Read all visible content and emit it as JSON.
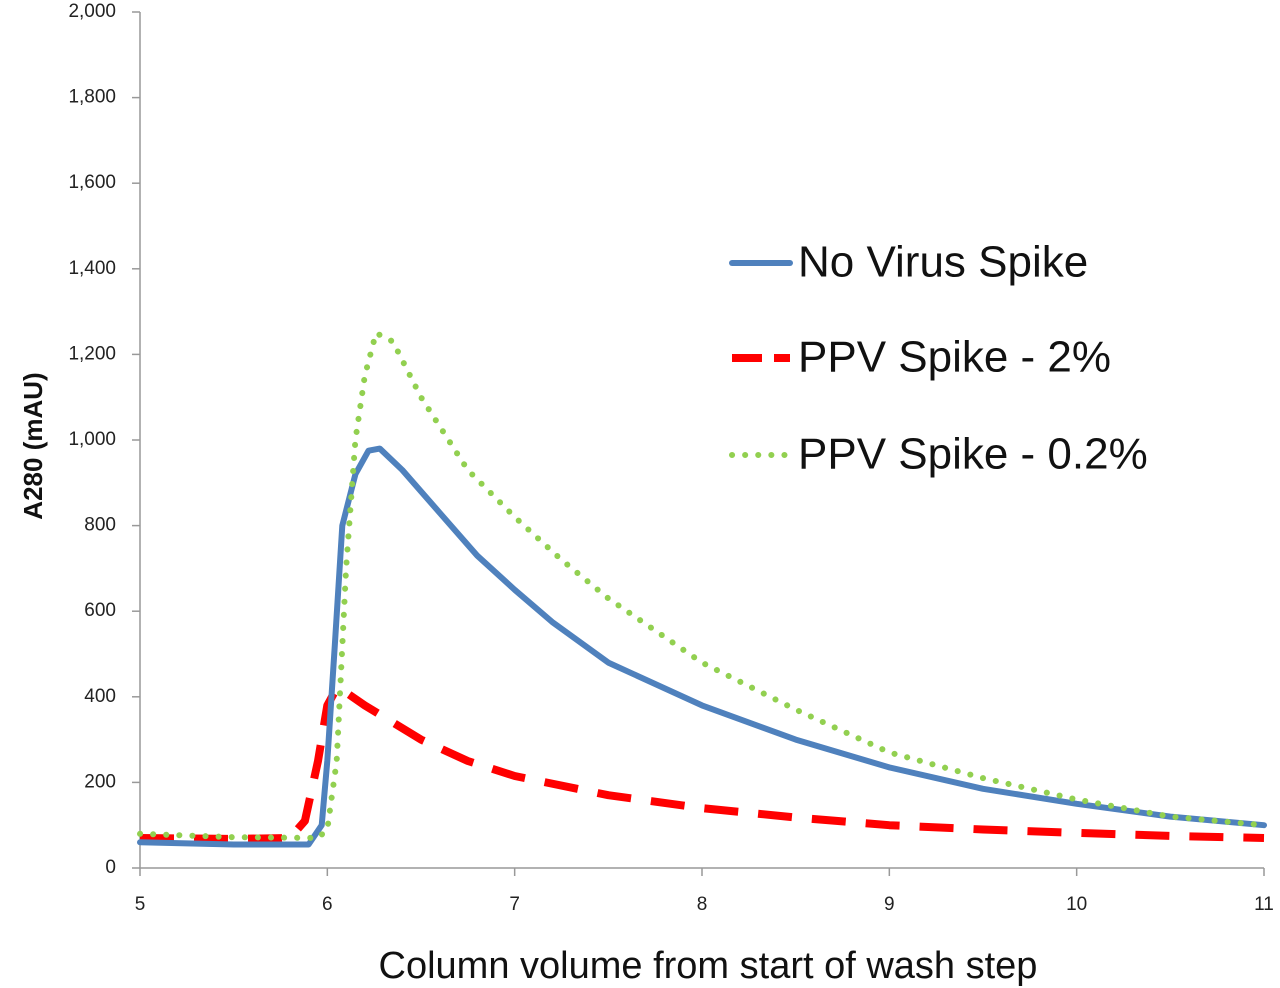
{
  "chart_data": {
    "type": "line",
    "title": "",
    "xlabel": "Column volume from start of wash step",
    "ylabel": "A280 (mAU)",
    "xlim": [
      5,
      11
    ],
    "ylim": [
      0,
      2000
    ],
    "x_ticks": [
      5,
      6,
      7,
      8,
      9,
      10,
      11
    ],
    "x_tick_labels": [
      "5",
      "6",
      "7",
      "8",
      "9",
      "10",
      "11"
    ],
    "y_ticks": [
      0,
      200,
      400,
      600,
      800,
      1000,
      1200,
      1400,
      1600,
      1800,
      2000
    ],
    "y_tick_labels": [
      "0",
      "200",
      "400",
      "600",
      "800",
      "1,000",
      "1,200",
      "1,400",
      "1,600",
      "1,800",
      "2,000"
    ],
    "grid": false,
    "legend_position": "right",
    "series": [
      {
        "name": "No Virus Spike",
        "color": "#4F81BD",
        "style": "solid",
        "points": [
          [
            5.0,
            60
          ],
          [
            5.5,
            55
          ],
          [
            5.9,
            55
          ],
          [
            5.97,
            100
          ],
          [
            6.0,
            250
          ],
          [
            6.04,
            520
          ],
          [
            6.08,
            800
          ],
          [
            6.15,
            920
          ],
          [
            6.22,
            975
          ],
          [
            6.28,
            980
          ],
          [
            6.4,
            930
          ],
          [
            6.6,
            830
          ],
          [
            6.8,
            730
          ],
          [
            7.0,
            650
          ],
          [
            7.2,
            575
          ],
          [
            7.5,
            480
          ],
          [
            8.0,
            380
          ],
          [
            8.5,
            300
          ],
          [
            9.0,
            235
          ],
          [
            9.5,
            185
          ],
          [
            10.0,
            150
          ],
          [
            10.5,
            120
          ],
          [
            11.0,
            100
          ]
        ]
      },
      {
        "name": "PPV Spike - 2%",
        "color": "#FF0000",
        "style": "dashed",
        "points": [
          [
            5.0,
            70
          ],
          [
            5.5,
            68
          ],
          [
            5.8,
            70
          ],
          [
            5.88,
            110
          ],
          [
            5.95,
            250
          ],
          [
            6.0,
            380
          ],
          [
            6.05,
            420
          ],
          [
            6.1,
            410
          ],
          [
            6.2,
            380
          ],
          [
            6.35,
            340
          ],
          [
            6.5,
            300
          ],
          [
            6.75,
            250
          ],
          [
            7.0,
            215
          ],
          [
            7.5,
            170
          ],
          [
            8.0,
            140
          ],
          [
            8.5,
            118
          ],
          [
            9.0,
            100
          ],
          [
            9.5,
            90
          ],
          [
            10.0,
            82
          ],
          [
            10.5,
            75
          ],
          [
            11.0,
            70
          ]
        ]
      },
      {
        "name": "PPV Spike - 0.2%",
        "color": "#92D050",
        "style": "dotted",
        "points": [
          [
            5.0,
            80
          ],
          [
            5.5,
            72
          ],
          [
            5.95,
            70
          ],
          [
            6.0,
            90
          ],
          [
            6.05,
            250
          ],
          [
            6.1,
            700
          ],
          [
            6.15,
            1000
          ],
          [
            6.2,
            1150
          ],
          [
            6.26,
            1250
          ],
          [
            6.35,
            1230
          ],
          [
            6.5,
            1100
          ],
          [
            6.75,
            930
          ],
          [
            7.0,
            820
          ],
          [
            7.25,
            720
          ],
          [
            7.5,
            630
          ],
          [
            8.0,
            480
          ],
          [
            8.5,
            370
          ],
          [
            9.0,
            270
          ],
          [
            9.5,
            210
          ],
          [
            10.0,
            160
          ],
          [
            10.5,
            120
          ],
          [
            11.0,
            100
          ]
        ]
      }
    ]
  }
}
